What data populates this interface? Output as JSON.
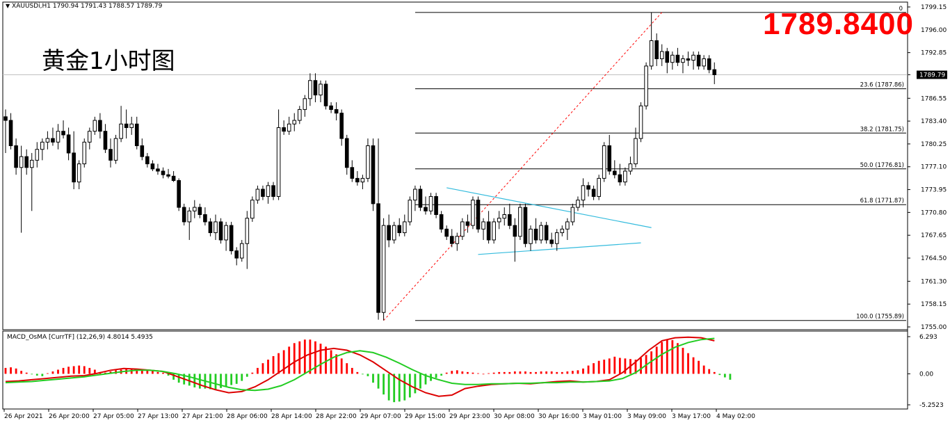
{
  "header": {
    "symbol_line": "XAUUSDi,H1  1790.94 1791.43 1788.57 1789.79",
    "chart_title": "黄金1小时图",
    "big_price": "1789.8400",
    "macd_line": "MACD_OsMA [CurrTF] (12,26,9) 4.8014 5.4935",
    "dropdown_icon": "triangle-down-icon"
  },
  "colors": {
    "bull_candle": "#ffffff",
    "bear_candle": "#000000",
    "trendline": "#33bbdd",
    "zigzag": "#ff0000",
    "macd_line": "#dd0000",
    "signal_line": "#22cc22",
    "hist_up": "#ff0000",
    "hist_down": "#22cc22",
    "big_price": "#ff0000"
  },
  "chart_data": {
    "type": "candlestick",
    "symbol": "XAUUSDi",
    "timeframe": "H1",
    "price_axis": {
      "ylim": [
        1755.0,
        1799.15
      ],
      "ticks": [
        "1799.15",
        "1796.00",
        "1792.85",
        "1789.80",
        "1786.55",
        "1783.40",
        "1780.25",
        "1777.10",
        "1773.95",
        "1770.80",
        "1767.65",
        "1764.50",
        "1761.30",
        "1758.15",
        "1755.00"
      ],
      "current_price_label": "1789.79",
      "current_price": 1789.79
    },
    "time_axis": {
      "labels": [
        "26 Apr 2021",
        "26 Apr 20:00",
        "27 Apr 05:00",
        "27 Apr 13:00",
        "27 Apr 21:00",
        "28 Apr 06:00",
        "28 Apr 14:00",
        "28 Apr 22:00",
        "29 Apr 07:00",
        "29 Apr 15:00",
        "29 Apr 23:00",
        "30 Apr 08:00",
        "30 Apr 16:00",
        "3 May 01:00",
        "3 May 09:00",
        "3 May 17:00",
        "4 May 02:00"
      ]
    },
    "fibonacci": {
      "levels": [
        {
          "label": "0",
          "price": 1798.4
        },
        {
          "label": "23.6 (1787.86)",
          "price": 1787.86
        },
        {
          "label": "38.2 (1781.75)",
          "price": 1781.75
        },
        {
          "label": "50.0 (1776.81)",
          "price": 1776.81
        },
        {
          "label": "61.8 (1771.87)",
          "price": 1771.87
        },
        {
          "label": "100.0 (1755.89)",
          "price": 1755.89
        }
      ]
    },
    "candles": [
      {
        "o": 1784.0,
        "h": 1785.0,
        "l": 1779.0,
        "c": 1783.5
      },
      {
        "o": 1783.5,
        "h": 1784.5,
        "l": 1779.5,
        "c": 1780.0
      },
      {
        "o": 1780.0,
        "h": 1781.0,
        "l": 1776.0,
        "c": 1777.0
      },
      {
        "o": 1777.0,
        "h": 1780.0,
        "l": 1768.0,
        "c": 1778.5
      },
      {
        "o": 1778.5,
        "h": 1779.5,
        "l": 1776.0,
        "c": 1777.0
      },
      {
        "o": 1777.0,
        "h": 1779.0,
        "l": 1771.0,
        "c": 1778.0
      },
      {
        "o": 1778.0,
        "h": 1780.5,
        "l": 1777.0,
        "c": 1779.5
      },
      {
        "o": 1779.5,
        "h": 1781.0,
        "l": 1778.0,
        "c": 1780.5
      },
      {
        "o": 1780.5,
        "h": 1782.0,
        "l": 1779.5,
        "c": 1781.0
      },
      {
        "o": 1781.0,
        "h": 1782.5,
        "l": 1780.0,
        "c": 1780.5
      },
      {
        "o": 1780.5,
        "h": 1783.0,
        "l": 1779.5,
        "c": 1782.0
      },
      {
        "o": 1782.0,
        "h": 1783.5,
        "l": 1781.0,
        "c": 1781.5
      },
      {
        "o": 1781.5,
        "h": 1782.5,
        "l": 1778.0,
        "c": 1779.0
      },
      {
        "o": 1779.0,
        "h": 1782.0,
        "l": 1774.0,
        "c": 1775.0
      },
      {
        "o": 1775.0,
        "h": 1778.0,
        "l": 1774.0,
        "c": 1777.5
      },
      {
        "o": 1777.5,
        "h": 1781.0,
        "l": 1777.0,
        "c": 1780.5
      },
      {
        "o": 1780.5,
        "h": 1782.5,
        "l": 1779.5,
        "c": 1782.0
      },
      {
        "o": 1782.0,
        "h": 1784.0,
        "l": 1781.5,
        "c": 1783.5
      },
      {
        "o": 1783.5,
        "h": 1784.5,
        "l": 1781.0,
        "c": 1782.0
      },
      {
        "o": 1782.0,
        "h": 1783.0,
        "l": 1779.0,
        "c": 1779.5
      },
      {
        "o": 1779.5,
        "h": 1781.0,
        "l": 1777.0,
        "c": 1778.0
      },
      {
        "o": 1778.0,
        "h": 1781.5,
        "l": 1777.5,
        "c": 1781.0
      },
      {
        "o": 1781.0,
        "h": 1785.5,
        "l": 1780.5,
        "c": 1783.0
      },
      {
        "o": 1783.0,
        "h": 1785.0,
        "l": 1781.0,
        "c": 1782.5
      },
      {
        "o": 1782.5,
        "h": 1784.0,
        "l": 1781.5,
        "c": 1783.0
      },
      {
        "o": 1783.0,
        "h": 1784.0,
        "l": 1779.5,
        "c": 1780.0
      },
      {
        "o": 1780.0,
        "h": 1781.0,
        "l": 1778.0,
        "c": 1778.5
      },
      {
        "o": 1778.5,
        "h": 1779.0,
        "l": 1777.0,
        "c": 1777.5
      },
      {
        "o": 1777.5,
        "h": 1778.0,
        "l": 1776.5,
        "c": 1776.8
      },
      {
        "o": 1776.8,
        "h": 1777.5,
        "l": 1776.0,
        "c": 1776.5
      },
      {
        "o": 1776.5,
        "h": 1777.0,
        "l": 1775.5,
        "c": 1776.0
      },
      {
        "o": 1776.0,
        "h": 1776.8,
        "l": 1775.5,
        "c": 1775.8
      },
      {
        "o": 1775.8,
        "h": 1776.5,
        "l": 1775.0,
        "c": 1775.2
      },
      {
        "o": 1775.2,
        "h": 1775.5,
        "l": 1771.0,
        "c": 1771.5
      },
      {
        "o": 1771.5,
        "h": 1772.0,
        "l": 1769.0,
        "c": 1769.5
      },
      {
        "o": 1769.5,
        "h": 1771.5,
        "l": 1767.0,
        "c": 1771.0
      },
      {
        "o": 1771.0,
        "h": 1772.5,
        "l": 1770.0,
        "c": 1771.5
      },
      {
        "o": 1771.5,
        "h": 1772.0,
        "l": 1770.0,
        "c": 1770.5
      },
      {
        "o": 1770.5,
        "h": 1771.5,
        "l": 1769.0,
        "c": 1769.5
      },
      {
        "o": 1769.5,
        "h": 1770.0,
        "l": 1767.5,
        "c": 1768.0
      },
      {
        "o": 1768.0,
        "h": 1770.5,
        "l": 1767.0,
        "c": 1769.5
      },
      {
        "o": 1769.5,
        "h": 1770.0,
        "l": 1766.5,
        "c": 1767.0
      },
      {
        "o": 1767.0,
        "h": 1769.5,
        "l": 1765.5,
        "c": 1769.0
      },
      {
        "o": 1769.0,
        "h": 1769.5,
        "l": 1765.0,
        "c": 1765.5
      },
      {
        "o": 1765.5,
        "h": 1766.0,
        "l": 1763.5,
        "c": 1764.5
      },
      {
        "o": 1764.5,
        "h": 1767.0,
        "l": 1764.0,
        "c": 1766.5
      },
      {
        "o": 1766.5,
        "h": 1771.0,
        "l": 1763.0,
        "c": 1770.0
      },
      {
        "o": 1770.0,
        "h": 1773.0,
        "l": 1769.5,
        "c": 1772.5
      },
      {
        "o": 1772.5,
        "h": 1774.5,
        "l": 1772.0,
        "c": 1774.0
      },
      {
        "o": 1774.0,
        "h": 1774.5,
        "l": 1772.5,
        "c": 1773.0
      },
      {
        "o": 1773.0,
        "h": 1775.0,
        "l": 1772.0,
        "c": 1774.5
      },
      {
        "o": 1774.5,
        "h": 1775.0,
        "l": 1772.5,
        "c": 1773.0
      },
      {
        "o": 1773.0,
        "h": 1785.0,
        "l": 1772.5,
        "c": 1782.5
      },
      {
        "o": 1782.5,
        "h": 1783.5,
        "l": 1781.5,
        "c": 1782.0
      },
      {
        "o": 1782.0,
        "h": 1784.0,
        "l": 1781.5,
        "c": 1783.0
      },
      {
        "o": 1783.0,
        "h": 1784.5,
        "l": 1782.0,
        "c": 1783.5
      },
      {
        "o": 1783.5,
        "h": 1785.5,
        "l": 1783.0,
        "c": 1785.0
      },
      {
        "o": 1785.0,
        "h": 1787.0,
        "l": 1784.0,
        "c": 1786.5
      },
      {
        "o": 1786.5,
        "h": 1790.0,
        "l": 1785.5,
        "c": 1789.0
      },
      {
        "o": 1789.0,
        "h": 1790.0,
        "l": 1786.0,
        "c": 1787.0
      },
      {
        "o": 1787.0,
        "h": 1789.0,
        "l": 1786.0,
        "c": 1788.5
      },
      {
        "o": 1788.5,
        "h": 1789.0,
        "l": 1785.0,
        "c": 1785.5
      },
      {
        "o": 1785.5,
        "h": 1786.0,
        "l": 1784.5,
        "c": 1785.0
      },
      {
        "o": 1785.0,
        "h": 1786.0,
        "l": 1783.5,
        "c": 1784.5
      },
      {
        "o": 1784.5,
        "h": 1785.0,
        "l": 1780.0,
        "c": 1781.0
      },
      {
        "o": 1781.0,
        "h": 1781.5,
        "l": 1776.0,
        "c": 1777.0
      },
      {
        "o": 1777.0,
        "h": 1778.0,
        "l": 1775.0,
        "c": 1775.5
      },
      {
        "o": 1775.5,
        "h": 1776.5,
        "l": 1774.5,
        "c": 1775.0
      },
      {
        "o": 1775.0,
        "h": 1776.0,
        "l": 1774.0,
        "c": 1775.5
      },
      {
        "o": 1775.5,
        "h": 1781.0,
        "l": 1775.0,
        "c": 1780.0
      },
      {
        "o": 1780.0,
        "h": 1781.0,
        "l": 1771.0,
        "c": 1772.0
      },
      {
        "o": 1772.0,
        "h": 1781.0,
        "l": 1756.0,
        "c": 1757.0
      },
      {
        "o": 1757.0,
        "h": 1770.0,
        "l": 1755.9,
        "c": 1769.0
      },
      {
        "o": 1769.0,
        "h": 1770.5,
        "l": 1766.0,
        "c": 1767.0
      },
      {
        "o": 1767.0,
        "h": 1769.5,
        "l": 1766.5,
        "c": 1769.0
      },
      {
        "o": 1769.0,
        "h": 1770.0,
        "l": 1767.5,
        "c": 1768.0
      },
      {
        "o": 1768.0,
        "h": 1770.5,
        "l": 1767.5,
        "c": 1769.5
      },
      {
        "o": 1769.5,
        "h": 1773.0,
        "l": 1769.0,
        "c": 1772.5
      },
      {
        "o": 1772.5,
        "h": 1774.5,
        "l": 1771.0,
        "c": 1774.0
      },
      {
        "o": 1774.0,
        "h": 1774.5,
        "l": 1771.0,
        "c": 1771.5
      },
      {
        "o": 1771.5,
        "h": 1773.0,
        "l": 1770.5,
        "c": 1771.0
      },
      {
        "o": 1771.0,
        "h": 1773.5,
        "l": 1770.5,
        "c": 1773.0
      },
      {
        "o": 1773.0,
        "h": 1773.5,
        "l": 1770.0,
        "c": 1770.5
      },
      {
        "o": 1770.5,
        "h": 1771.0,
        "l": 1768.0,
        "c": 1768.5
      },
      {
        "o": 1768.5,
        "h": 1769.0,
        "l": 1767.0,
        "c": 1767.5
      },
      {
        "o": 1767.5,
        "h": 1768.5,
        "l": 1766.0,
        "c": 1766.5
      },
      {
        "o": 1766.5,
        "h": 1768.0,
        "l": 1765.5,
        "c": 1767.5
      },
      {
        "o": 1767.5,
        "h": 1770.0,
        "l": 1767.0,
        "c": 1769.5
      },
      {
        "o": 1769.5,
        "h": 1770.5,
        "l": 1768.0,
        "c": 1769.0
      },
      {
        "o": 1769.0,
        "h": 1773.0,
        "l": 1768.5,
        "c": 1772.5
      },
      {
        "o": 1772.5,
        "h": 1773.0,
        "l": 1768.0,
        "c": 1768.5
      },
      {
        "o": 1768.5,
        "h": 1770.0,
        "l": 1767.0,
        "c": 1769.5
      },
      {
        "o": 1769.5,
        "h": 1771.0,
        "l": 1766.5,
        "c": 1767.0
      },
      {
        "o": 1767.0,
        "h": 1770.0,
        "l": 1766.5,
        "c": 1769.5
      },
      {
        "o": 1769.5,
        "h": 1771.0,
        "l": 1768.5,
        "c": 1770.0
      },
      {
        "o": 1770.0,
        "h": 1771.5,
        "l": 1769.0,
        "c": 1770.5
      },
      {
        "o": 1770.5,
        "h": 1772.0,
        "l": 1768.5,
        "c": 1769.0
      },
      {
        "o": 1769.0,
        "h": 1770.0,
        "l": 1764.0,
        "c": 1767.5
      },
      {
        "o": 1767.5,
        "h": 1772.0,
        "l": 1767.0,
        "c": 1771.5
      },
      {
        "o": 1771.5,
        "h": 1772.0,
        "l": 1766.0,
        "c": 1766.5
      },
      {
        "o": 1766.5,
        "h": 1769.0,
        "l": 1765.5,
        "c": 1768.5
      },
      {
        "o": 1768.5,
        "h": 1770.0,
        "l": 1766.5,
        "c": 1767.0
      },
      {
        "o": 1767.0,
        "h": 1769.5,
        "l": 1766.5,
        "c": 1769.0
      },
      {
        "o": 1769.0,
        "h": 1769.5,
        "l": 1766.5,
        "c": 1767.0
      },
      {
        "o": 1767.0,
        "h": 1768.0,
        "l": 1766.0,
        "c": 1766.5
      },
      {
        "o": 1766.5,
        "h": 1768.5,
        "l": 1765.5,
        "c": 1768.0
      },
      {
        "o": 1768.0,
        "h": 1769.0,
        "l": 1767.5,
        "c": 1768.5
      },
      {
        "o": 1768.5,
        "h": 1770.0,
        "l": 1767.0,
        "c": 1769.5
      },
      {
        "o": 1769.5,
        "h": 1772.0,
        "l": 1769.0,
        "c": 1771.5
      },
      {
        "o": 1771.5,
        "h": 1773.0,
        "l": 1771.0,
        "c": 1772.5
      },
      {
        "o": 1772.5,
        "h": 1775.5,
        "l": 1771.5,
        "c": 1774.5
      },
      {
        "o": 1774.5,
        "h": 1775.0,
        "l": 1773.0,
        "c": 1774.0
      },
      {
        "o": 1774.0,
        "h": 1774.5,
        "l": 1772.5,
        "c": 1773.0
      },
      {
        "o": 1773.0,
        "h": 1776.0,
        "l": 1772.5,
        "c": 1775.5
      },
      {
        "o": 1775.5,
        "h": 1780.5,
        "l": 1775.0,
        "c": 1780.0
      },
      {
        "o": 1780.0,
        "h": 1781.5,
        "l": 1776.0,
        "c": 1776.5
      },
      {
        "o": 1776.5,
        "h": 1778.0,
        "l": 1775.5,
        "c": 1776.0
      },
      {
        "o": 1776.0,
        "h": 1777.5,
        "l": 1774.5,
        "c": 1775.0
      },
      {
        "o": 1775.0,
        "h": 1777.0,
        "l": 1774.5,
        "c": 1776.5
      },
      {
        "o": 1776.5,
        "h": 1778.5,
        "l": 1776.0,
        "c": 1777.5
      },
      {
        "o": 1777.5,
        "h": 1782.5,
        "l": 1777.0,
        "c": 1781.0
      },
      {
        "o": 1781.0,
        "h": 1786.0,
        "l": 1780.5,
        "c": 1785.5
      },
      {
        "o": 1785.5,
        "h": 1791.5,
        "l": 1785.0,
        "c": 1791.0
      },
      {
        "o": 1791.0,
        "h": 1798.4,
        "l": 1790.5,
        "c": 1794.5
      },
      {
        "o": 1794.5,
        "h": 1795.5,
        "l": 1791.0,
        "c": 1792.0
      },
      {
        "o": 1792.0,
        "h": 1794.0,
        "l": 1791.0,
        "c": 1793.0
      },
      {
        "o": 1793.0,
        "h": 1793.5,
        "l": 1790.0,
        "c": 1791.5
      },
      {
        "o": 1791.5,
        "h": 1793.0,
        "l": 1790.5,
        "c": 1792.5
      },
      {
        "o": 1792.5,
        "h": 1793.5,
        "l": 1791.0,
        "c": 1791.5
      },
      {
        "o": 1791.5,
        "h": 1792.5,
        "l": 1790.0,
        "c": 1792.0
      },
      {
        "o": 1792.0,
        "h": 1793.0,
        "l": 1791.0,
        "c": 1791.8
      },
      {
        "o": 1791.8,
        "h": 1793.0,
        "l": 1790.5,
        "c": 1792.5
      },
      {
        "o": 1792.5,
        "h": 1793.0,
        "l": 1790.5,
        "c": 1791.0
      },
      {
        "o": 1791.0,
        "h": 1792.5,
        "l": 1790.5,
        "c": 1792.0
      },
      {
        "o": 1792.0,
        "h": 1792.5,
        "l": 1790.0,
        "c": 1790.5
      },
      {
        "o": 1790.5,
        "h": 1791.5,
        "l": 1788.5,
        "c": 1789.8
      }
    ],
    "macd_panel": {
      "ylim": [
        -5.2523,
        6.293
      ],
      "ticks": [
        "6.293",
        "0.00",
        "-5.2523"
      ],
      "histogram": [
        1.0,
        1.1,
        0.9,
        0.5,
        0.2,
        -0.1,
        -0.3,
        -0.4,
        0.1,
        0.4,
        0.7,
        1.0,
        1.2,
        1.3,
        1.4,
        1.3,
        1.0,
        0.7,
        0.3,
        0.2,
        0.4,
        0.6,
        0.7,
        0.9,
        0.9,
        0.8,
        0.8,
        0.7,
        0.5,
        0.3,
        0.2,
        -0.3,
        -1.0,
        -1.5,
        -1.8,
        -2.0,
        -2.3,
        -2.5,
        -2.5,
        -2.6,
        -2.7,
        -2.4,
        -2.2,
        -1.9,
        -1.7,
        -1.2,
        -0.5,
        0.2,
        1.0,
        1.8,
        2.4,
        3.0,
        3.5,
        4.0,
        4.6,
        5.2,
        5.5,
        5.8,
        5.8,
        5.5,
        5.1,
        4.6,
        4.0,
        3.3,
        2.6,
        1.8,
        1.0,
        0.3,
        -0.1,
        -0.4,
        -1.5,
        -2.5,
        -3.5,
        -4.5,
        -4.8,
        -4.7,
        -4.5,
        -4.0,
        -3.3,
        -2.5,
        -1.8,
        -1.2,
        -0.7,
        -0.3,
        0.2,
        0.5,
        0.6,
        0.4,
        0.3,
        0.2,
        0.1,
        0.0,
        0.1,
        0.2,
        0.3,
        0.3,
        0.3,
        0.4,
        0.4,
        0.4,
        0.3,
        0.3,
        0.4,
        0.4,
        0.4,
        0.3,
        0.3,
        0.4,
        0.5,
        0.6,
        0.9,
        1.4,
        1.8,
        2.2,
        2.4,
        2.6,
        2.9,
        2.7,
        2.6,
        2.5,
        2.4,
        2.7,
        3.2,
        3.8,
        4.6,
        5.4,
        5.8,
        5.7,
        5.2,
        4.4,
        3.5,
        2.8,
        2.2,
        1.4,
        0.8,
        0.3,
        -0.2,
        -0.6,
        -1.0
      ],
      "macd": [
        -1.3,
        -1.2,
        -1.0,
        -0.8,
        -0.6,
        -0.4,
        -0.3,
        0.1,
        0.6,
        0.9,
        0.8,
        0.6,
        0.4,
        -0.4,
        -1.2,
        -2.0,
        -2.7,
        -3.2,
        -3.0,
        -2.2,
        -1.0,
        0.5,
        2.0,
        3.2,
        4.0,
        4.3,
        4.0,
        3.2,
        2.0,
        0.5,
        -1.0,
        -2.2,
        -3.2,
        -3.8,
        -3.6,
        -2.5,
        -2.1,
        -1.8,
        -1.7,
        -1.6,
        -1.7,
        -1.5,
        -1.3,
        -1.2,
        -1.4,
        -1.3,
        -1.0,
        0.2,
        2.0,
        4.0,
        5.6,
        6.1,
        6.2,
        6.1,
        5.6
      ],
      "signal": [
        -1.5,
        -1.4,
        -1.3,
        -1.1,
        -0.9,
        -0.7,
        -0.5,
        -0.2,
        0.1,
        0.4,
        0.6,
        0.6,
        0.4,
        0.0,
        -0.5,
        -1.1,
        -1.7,
        -2.3,
        -2.7,
        -2.8,
        -2.6,
        -2.0,
        -1.0,
        0.3,
        1.6,
        2.8,
        3.6,
        3.9,
        3.6,
        2.8,
        1.8,
        0.7,
        -0.3,
        -1.0,
        -1.6,
        -1.8,
        -1.8,
        -1.7,
        -1.7,
        -1.6,
        -1.6,
        -1.5,
        -1.5,
        -1.4,
        -1.4,
        -1.3,
        -1.2,
        -0.8,
        0.2,
        1.8,
        3.3,
        4.5,
        5.3,
        5.8,
        6.0
      ]
    }
  }
}
